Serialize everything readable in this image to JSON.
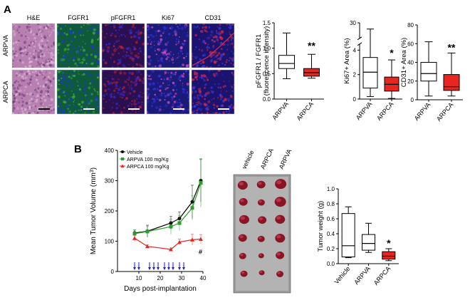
{
  "figure": {
    "panel_a_letter": "A",
    "panel_b_letter": "B"
  },
  "micrographs": {
    "columns": [
      "H&E",
      "FGFR1",
      "pFGFR1",
      "Ki67",
      "CD31"
    ],
    "rows": [
      "ARPVA",
      "ARPCA"
    ],
    "colors": {
      "he_base": "#b780b0",
      "fgfr1_base": "#0f5a3a",
      "pfgfr1_base": "#2a1050",
      "ki67_base": "#1a1a78",
      "cd31_base": "#1a1470",
      "scale_bar": "#ffffff"
    }
  },
  "chart_data": [
    {
      "id": "pfgfr1-ratio",
      "type": "box",
      "ylabel": [
        "pFGFR1 / FGFR1",
        "(fluorescence intensity)"
      ],
      "ylim": [
        0,
        1.5
      ],
      "yticks": [
        "0.0",
        "0.5",
        "1.0",
        "1.5"
      ],
      "categories": [
        "ARPVA",
        "ARPCA"
      ],
      "boxes": [
        {
          "min": 0.4,
          "q1": 0.6,
          "median": 0.7,
          "q3": 0.86,
          "max": 1.3,
          "fill": "#ffffff"
        },
        {
          "min": 0.41,
          "q1": 0.45,
          "median": 0.52,
          "q3": 0.6,
          "max": 0.88,
          "fill": "#e8251f"
        }
      ],
      "annotation": "**"
    },
    {
      "id": "ki67-area",
      "type": "box",
      "ylabel": "Ki67+ Area (%)",
      "ylim": [
        0,
        30
      ],
      "axis_break": [
        4.5,
        25
      ],
      "yticks": [
        "0",
        "2",
        "4",
        "30"
      ],
      "categories": [
        "ARPVA",
        "ARPCA"
      ],
      "boxes": [
        {
          "min": 0.2,
          "q1": 0.9,
          "median": 2.2,
          "q3": 3.4,
          "max": 28,
          "fill": "#ffffff"
        },
        {
          "min": 0.05,
          "q1": 0.65,
          "median": 1.2,
          "q3": 1.8,
          "max": 3.2,
          "fill": "#e8251f"
        }
      ],
      "annotation": "*"
    },
    {
      "id": "cd31-area",
      "type": "box",
      "ylabel": "CD31+ Area (%)",
      "ylim": [
        0,
        80
      ],
      "yticks": [
        "0",
        "20",
        "40",
        "60",
        "80"
      ],
      "categories": [
        "ARPVA",
        "ARPCA"
      ],
      "boxes": [
        {
          "min": 4,
          "q1": 20,
          "median": 28,
          "q3": 40,
          "max": 62,
          "fill": "#ffffff"
        },
        {
          "min": 4,
          "q1": 10,
          "median": 14,
          "q3": 27,
          "max": 50,
          "fill": "#e8251f"
        }
      ],
      "annotation": "**"
    },
    {
      "id": "tumor-volume",
      "type": "line",
      "ylabel": "Mean Tumor Volume (mm",
      "ylabel_sup": "3",
      "ylabel_end": ")",
      "xlabel": "Days post-implantation",
      "xlim": [
        0,
        40
      ],
      "ylim": [
        0,
        400
      ],
      "xticks": [
        "10",
        "20",
        "30",
        "40"
      ],
      "yticks": [
        "0",
        "100",
        "200",
        "300",
        "400"
      ],
      "series": [
        {
          "name": "Vehicle",
          "color": "#000000",
          "x": [
            8,
            14,
            25,
            29,
            35,
            39
          ],
          "y": [
            127,
            133,
            160,
            175,
            230,
            300
          ],
          "err": [
            10,
            20,
            22,
            22,
            55,
            70
          ]
        },
        {
          "name": "ARPVA 100 mg/Kg",
          "color": "#2a9e2a",
          "x": [
            8,
            14,
            25,
            29,
            35,
            39
          ],
          "y": [
            125,
            132,
            148,
            160,
            210,
            293
          ],
          "err": [
            12,
            18,
            25,
            25,
            40,
            80
          ]
        },
        {
          "name": "ARPCA 100 mg/Kg",
          "color": "#e8251f",
          "x": [
            8,
            14,
            25,
            29,
            35,
            39
          ],
          "y": [
            110,
            83,
            73,
            97,
            105,
            107
          ],
          "err": [
            10,
            5,
            5,
            10,
            18,
            15
          ]
        }
      ],
      "dosing_days": [
        8,
        10,
        15,
        17,
        19,
        22,
        24,
        26,
        29,
        31
      ],
      "annotation": "#",
      "arrow_color": "#1a1ad0"
    },
    {
      "id": "tumor-photo",
      "type": "photo",
      "column_labels": [
        "vehicle",
        "ARPCA",
        "ARPVA"
      ],
      "tumor_counts": [
        6,
        6,
        6
      ]
    },
    {
      "id": "tumor-weight",
      "type": "box",
      "ylabel": "Tumor weight (g)",
      "ylim": [
        0,
        1.0
      ],
      "yticks": [
        "0.0",
        "0.2",
        "0.4",
        "0.6",
        "0.8",
        "1.0"
      ],
      "categories": [
        "Vehicle",
        "ARPVA",
        "ARPCA"
      ],
      "boxes": [
        {
          "min": 0.08,
          "q1": 0.09,
          "median": 0.24,
          "q3": 0.67,
          "max": 0.76,
          "fill": "#ffffff"
        },
        {
          "min": 0.15,
          "q1": 0.18,
          "median": 0.27,
          "q3": 0.39,
          "max": 0.54,
          "fill": "#ffffff"
        },
        {
          "min": 0.04,
          "q1": 0.06,
          "median": 0.1,
          "q3": 0.16,
          "max": 0.2,
          "fill": "#e8251f"
        }
      ],
      "annotation": "*"
    }
  ]
}
